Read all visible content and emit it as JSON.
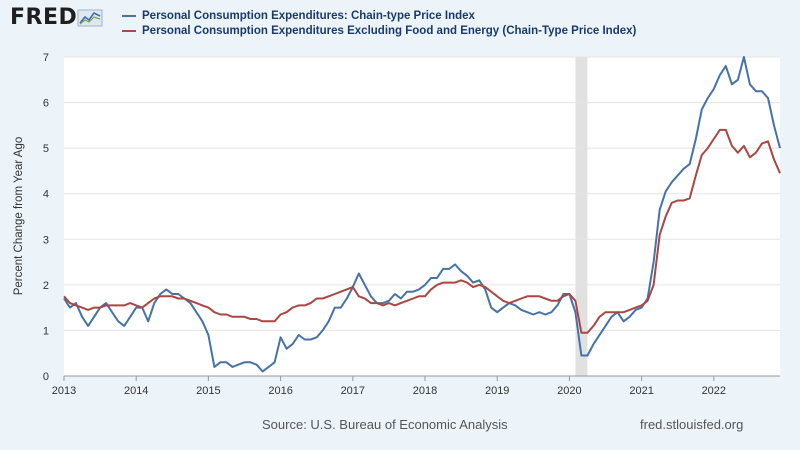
{
  "logo": {
    "text": "FRED"
  },
  "colors": {
    "series1": "#4572a7",
    "series2": "#aa4643",
    "plot_bg": "#ffffff",
    "page_bg": "#ecf4fa",
    "recession": "#e1e1e1"
  },
  "footer": {
    "source": "Source: U.S. Bureau of Economic Analysis",
    "url": "fred.stlouisfed.org"
  },
  "chart_data": {
    "type": "line",
    "title": "",
    "xlabel": "",
    "ylabel": "Percent Change from Year Ago",
    "ylim": [
      0,
      7
    ],
    "yticks": [
      0,
      1,
      2,
      3,
      4,
      5,
      6,
      7
    ],
    "xlim": [
      "2013-01",
      "2022-12"
    ],
    "xticks": [
      "2013",
      "2014",
      "2015",
      "2016",
      "2017",
      "2018",
      "2019",
      "2020",
      "2021",
      "2022"
    ],
    "grid": true,
    "legend_position": "top",
    "recession_shading": [
      [
        "2020-02",
        "2020-04"
      ]
    ],
    "x_start": "2013-01",
    "x_frequency": "monthly",
    "series": [
      {
        "name": "Personal Consumption Expenditures: Chain-type Price Index",
        "values": [
          1.7,
          1.5,
          1.6,
          1.3,
          1.1,
          1.3,
          1.5,
          1.6,
          1.4,
          1.2,
          1.1,
          1.3,
          1.5,
          1.5,
          1.2,
          1.6,
          1.8,
          1.9,
          1.8,
          1.8,
          1.7,
          1.6,
          1.4,
          1.2,
          0.9,
          0.2,
          0.3,
          0.3,
          0.2,
          0.25,
          0.3,
          0.3,
          0.25,
          0.1,
          0.2,
          0.3,
          0.85,
          0.6,
          0.7,
          0.9,
          0.8,
          0.8,
          0.85,
          1.0,
          1.2,
          1.5,
          1.5,
          1.7,
          1.95,
          2.25,
          2.0,
          1.75,
          1.6,
          1.6,
          1.65,
          1.8,
          1.7,
          1.85,
          1.85,
          1.9,
          2.0,
          2.15,
          2.15,
          2.35,
          2.35,
          2.45,
          2.3,
          2.2,
          2.05,
          2.1,
          1.9,
          1.5,
          1.4,
          1.5,
          1.6,
          1.55,
          1.45,
          1.4,
          1.35,
          1.4,
          1.35,
          1.4,
          1.55,
          1.8,
          1.8,
          1.4,
          0.45,
          0.45,
          0.7,
          0.9,
          1.1,
          1.3,
          1.4,
          1.2,
          1.3,
          1.45,
          1.5,
          1.7,
          2.5,
          3.65,
          4.05,
          4.25,
          4.4,
          4.55,
          4.65,
          5.2,
          5.85,
          6.1,
          6.3,
          6.6,
          6.8,
          6.4,
          6.5,
          7.0,
          6.4,
          6.25,
          6.25,
          6.1,
          5.5,
          5.0
        ]
      },
      {
        "name": "Personal Consumption Expenditures Excluding Food and Energy (Chain-Type Price Index)",
        "values": [
          1.75,
          1.6,
          1.55,
          1.5,
          1.45,
          1.5,
          1.5,
          1.55,
          1.55,
          1.55,
          1.55,
          1.6,
          1.55,
          1.5,
          1.6,
          1.7,
          1.75,
          1.75,
          1.75,
          1.7,
          1.7,
          1.65,
          1.6,
          1.55,
          1.5,
          1.4,
          1.35,
          1.35,
          1.3,
          1.3,
          1.3,
          1.25,
          1.25,
          1.2,
          1.2,
          1.2,
          1.35,
          1.4,
          1.5,
          1.55,
          1.55,
          1.6,
          1.7,
          1.7,
          1.75,
          1.8,
          1.85,
          1.9,
          1.95,
          1.75,
          1.7,
          1.6,
          1.6,
          1.55,
          1.6,
          1.55,
          1.6,
          1.65,
          1.7,
          1.75,
          1.75,
          1.9,
          2.0,
          2.05,
          2.05,
          2.05,
          2.1,
          2.05,
          1.95,
          2.0,
          1.95,
          1.85,
          1.75,
          1.65,
          1.6,
          1.65,
          1.7,
          1.75,
          1.75,
          1.75,
          1.7,
          1.65,
          1.65,
          1.75,
          1.8,
          1.65,
          0.95,
          0.95,
          1.1,
          1.3,
          1.4,
          1.4,
          1.4,
          1.4,
          1.45,
          1.5,
          1.55,
          1.65,
          2.0,
          3.1,
          3.5,
          3.8,
          3.85,
          3.85,
          3.9,
          4.4,
          4.85,
          5.0,
          5.2,
          5.4,
          5.4,
          5.05,
          4.9,
          5.05,
          4.8,
          4.9,
          5.1,
          5.15,
          4.75,
          4.45
        ]
      }
    ]
  }
}
